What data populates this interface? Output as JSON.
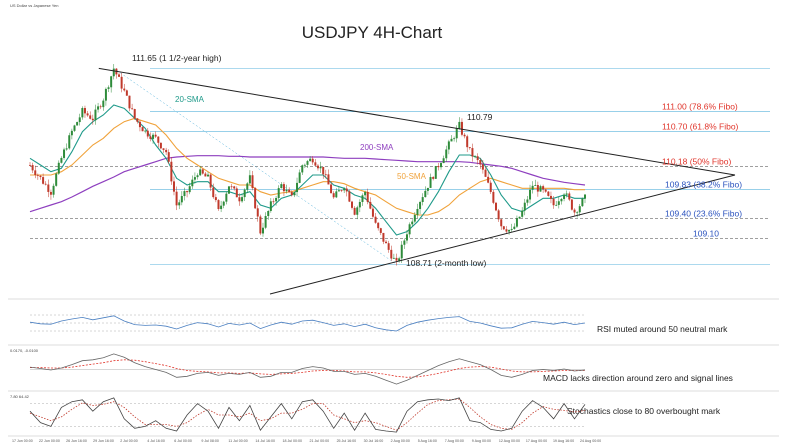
{
  "header": {
    "pair_label": "US Dollar vs Japanese Yen",
    "title": "USDJPY 4H-Chart"
  },
  "colors": {
    "bull": "#2e8b3a",
    "bear": "#c0392b",
    "sma20": "#1f9a8a",
    "sma50": "#f0a23a",
    "sma200": "#8e3fbf",
    "fibo": "#5ab4dc",
    "fibo_red": "#e0342a",
    "fibo_blue": "#2a52be",
    "trend": "#222222",
    "rsi": "#4a7fc1",
    "macd_red": "#e0342a",
    "stoch": "#444444"
  },
  "chart_data": [
    {
      "type": "candlestick",
      "title": "USDJPY 4H-Chart",
      "ylim": [
        108.4,
        111.85
      ],
      "annotations": {
        "high": "111.65 (1 1/2-year high)",
        "peak": "110.79",
        "low": "108.71 (2-month low)"
      },
      "fibo_levels": [
        {
          "value": 111.0,
          "label": "111.00 (78.6% Fibo)",
          "color": "fibo_red"
        },
        {
          "value": 110.7,
          "label": "110.70 (61.8% Fibo)",
          "color": "fibo_red"
        },
        {
          "value": 110.18,
          "label": "110.18 (50% Fibo)",
          "color": "fibo_red"
        },
        {
          "value": 109.83,
          "label": "109.83 (38.2% Fibo)",
          "color": "fibo_blue"
        },
        {
          "value": 109.4,
          "label": "109.40 (23.6% Fibo)",
          "color": "fibo_blue"
        },
        {
          "value": 109.1,
          "label": "109.10",
          "color": "fibo_blue"
        }
      ],
      "sma_labels": {
        "sma20": "20-SMA",
        "sma50": "50-SMA",
        "sma200": "200-SMA"
      },
      "path": [
        110.2,
        110.0,
        109.8,
        110.3,
        110.7,
        111.0,
        110.9,
        111.2,
        111.65,
        111.3,
        110.9,
        110.7,
        110.6,
        110.4,
        109.6,
        109.8,
        110.1,
        110.0,
        109.5,
        109.9,
        109.7,
        110.0,
        109.2,
        109.6,
        109.9,
        109.7,
        110.2,
        110.3,
        110.1,
        109.7,
        109.9,
        109.5,
        109.8,
        109.3,
        109.0,
        108.71,
        109.2,
        109.6,
        109.9,
        110.2,
        110.5,
        110.79,
        110.4,
        110.2,
        109.8,
        109.3,
        109.2,
        109.5,
        109.9,
        109.8,
        109.6,
        109.8,
        109.5,
        109.7
      ],
      "sma20": [
        110.3,
        110.2,
        110.1,
        110.15,
        110.4,
        110.7,
        110.85,
        110.95,
        111.1,
        111.05,
        110.9,
        110.75,
        110.5,
        110.3,
        110.0,
        109.9,
        109.95,
        109.95,
        109.8,
        109.8,
        109.75,
        109.8,
        109.6,
        109.55,
        109.7,
        109.75,
        109.9,
        110.05,
        110.05,
        109.9,
        109.85,
        109.75,
        109.7,
        109.55,
        109.35,
        109.15,
        109.2,
        109.35,
        109.55,
        109.8,
        110.1,
        110.35,
        110.35,
        110.3,
        110.05,
        109.75,
        109.55,
        109.5,
        109.6,
        109.7,
        109.7,
        109.75,
        109.7,
        109.7
      ],
      "sma50": [
        110.05,
        110.05,
        110.05,
        110.1,
        110.2,
        110.35,
        110.5,
        110.6,
        110.75,
        110.85,
        110.9,
        110.85,
        110.8,
        110.65,
        110.45,
        110.3,
        110.2,
        110.1,
        110.0,
        109.95,
        109.9,
        109.9,
        109.8,
        109.75,
        109.78,
        109.8,
        109.85,
        109.9,
        109.95,
        109.95,
        109.92,
        109.85,
        109.8,
        109.75,
        109.65,
        109.55,
        109.5,
        109.45,
        109.45,
        109.5,
        109.6,
        109.75,
        109.85,
        109.95,
        110.0,
        109.95,
        109.9,
        109.85,
        109.85,
        109.85,
        109.85,
        109.85,
        109.83,
        109.83
      ],
      "sma200": [
        109.5,
        109.55,
        109.6,
        109.65,
        109.72,
        109.8,
        109.88,
        109.95,
        110.02,
        110.1,
        110.15,
        110.2,
        110.25,
        110.3,
        110.32,
        110.33,
        110.34,
        110.34,
        110.34,
        110.33,
        110.33,
        110.32,
        110.32,
        110.32,
        110.32,
        110.32,
        110.32,
        110.32,
        110.32,
        110.31,
        110.3,
        110.3,
        110.3,
        110.29,
        110.28,
        110.27,
        110.26,
        110.25,
        110.25,
        110.25,
        110.25,
        110.25,
        110.24,
        110.22,
        110.2,
        110.18,
        110.15,
        110.1,
        110.05,
        110.0,
        109.97,
        109.94,
        109.92,
        109.9
      ]
    },
    {
      "type": "line",
      "name": "RSI",
      "note": "RSI muted around 50 neutral mark",
      "ylim": [
        0,
        100
      ],
      "levels": [
        30,
        50,
        70
      ],
      "values": [
        52,
        48,
        47,
        55,
        60,
        64,
        58,
        63,
        68,
        55,
        46,
        44,
        45,
        42,
        35,
        44,
        51,
        48,
        40,
        49,
        45,
        50,
        36,
        45,
        52,
        47,
        55,
        57,
        51,
        44,
        48,
        41,
        47,
        38,
        33,
        30,
        44,
        52,
        57,
        61,
        64,
        66,
        54,
        50,
        43,
        37,
        38,
        47,
        54,
        51,
        47,
        52,
        46,
        50
      ]
    },
    {
      "type": "line",
      "name": "MACD",
      "header": "0.0170, -0.0100",
      "note": "MACD lacks direction around zero and signal lines",
      "ylim": [
        -0.4,
        0.4
      ],
      "values": [
        0.05,
        0.02,
        -0.01,
        0.03,
        0.1,
        0.18,
        0.2,
        0.24,
        0.32,
        0.25,
        0.14,
        0.06,
        0.0,
        -0.06,
        -0.16,
        -0.14,
        -0.08,
        -0.06,
        -0.12,
        -0.08,
        -0.1,
        -0.06,
        -0.16,
        -0.14,
        -0.06,
        -0.06,
        0.02,
        0.06,
        0.03,
        -0.04,
        -0.04,
        -0.1,
        -0.08,
        -0.14,
        -0.22,
        -0.3,
        -0.22,
        -0.12,
        -0.02,
        0.08,
        0.16,
        0.22,
        0.16,
        0.1,
        0.0,
        -0.12,
        -0.16,
        -0.1,
        -0.02,
        0.0,
        -0.02,
        0.01,
        -0.03,
        -0.01
      ],
      "signal": [
        0.04,
        0.04,
        0.03,
        0.03,
        0.05,
        0.08,
        0.11,
        0.14,
        0.18,
        0.2,
        0.19,
        0.16,
        0.12,
        0.08,
        0.02,
        -0.02,
        -0.04,
        -0.05,
        -0.07,
        -0.07,
        -0.08,
        -0.07,
        -0.09,
        -0.1,
        -0.09,
        -0.08,
        -0.06,
        -0.03,
        -0.02,
        -0.02,
        -0.03,
        -0.05,
        -0.05,
        -0.07,
        -0.1,
        -0.14,
        -0.16,
        -0.15,
        -0.12,
        -0.08,
        -0.03,
        0.02,
        0.05,
        0.06,
        0.05,
        0.01,
        -0.03,
        -0.05,
        -0.05,
        -0.04,
        -0.03,
        -0.02,
        -0.02,
        -0.02
      ]
    },
    {
      "type": "line",
      "name": "Stochastics",
      "header": "7.80 64.42",
      "note": "Stochastics close to 80 overbought mark",
      "ylim": [
        0,
        100
      ],
      "levels": [
        20,
        80
      ],
      "values": [
        60,
        30,
        20,
        70,
        85,
        90,
        60,
        85,
        95,
        40,
        15,
        20,
        35,
        15,
        8,
        50,
        80,
        60,
        15,
        70,
        35,
        75,
        10,
        45,
        80,
        40,
        85,
        90,
        60,
        15,
        55,
        10,
        55,
        12,
        8,
        5,
        60,
        85,
        90,
        92,
        88,
        95,
        35,
        30,
        12,
        8,
        15,
        60,
        88,
        70,
        40,
        80,
        40,
        78
      ],
      "signal": [
        55,
        45,
        35,
        45,
        65,
        82,
        75,
        78,
        85,
        70,
        45,
        25,
        25,
        25,
        20,
        30,
        50,
        65,
        50,
        50,
        45,
        55,
        35,
        40,
        55,
        55,
        65,
        80,
        80,
        50,
        40,
        30,
        35,
        30,
        20,
        10,
        30,
        55,
        78,
        88,
        90,
        92,
        70,
        45,
        25,
        15,
        12,
        30,
        55,
        72,
        65,
        62,
        58,
        62
      ]
    }
  ],
  "x_ticks": [
    "17 Jun 00:00",
    "22 Jun 00:00",
    "26 Jun 16:00",
    "29 Jun 16:00",
    "2 Jul 00:00",
    "4 Jul 16:00",
    "6 Jul 00:00",
    "9 Jul 08:00",
    "11 Jul 00:00",
    "14 Jul 16:00",
    "18 Jul 00:00",
    "21 Jul 00:00",
    "25 Jul 16:00",
    "30 Jul 16:00",
    "2 Aug 00:00",
    "5 Aug 16:00",
    "7 Aug 00:00",
    "9 Aug 00:00",
    "12 Aug 00:00",
    "17 Aug 00:00",
    "19 Aug 16:00",
    "24 Aug 00:00"
  ]
}
